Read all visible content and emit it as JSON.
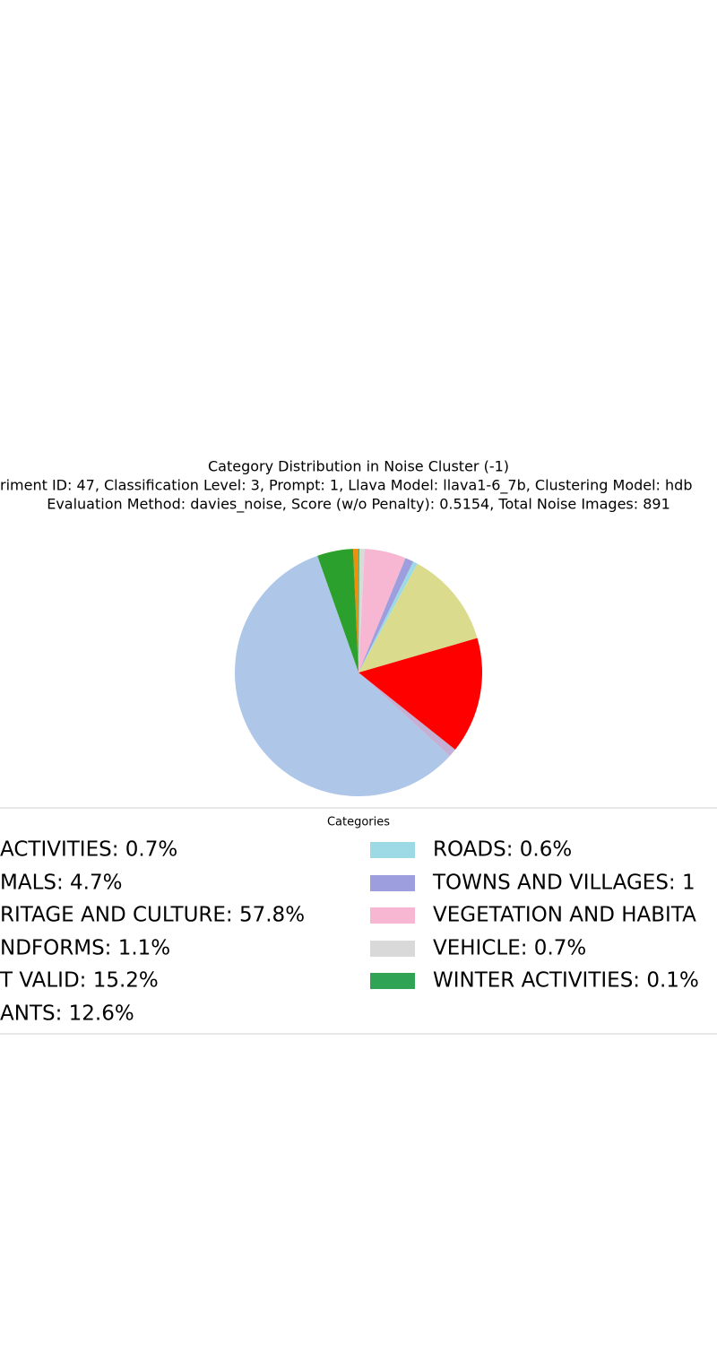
{
  "chart_data": {
    "type": "pie",
    "title": [
      "Category Distribution in Noise Cluster (-1)",
      "riment ID: 47, Classification Level: 3, Prompt: 1, Llava Model: llava1-6_7b, Clustering Model: hdb",
      "Evaluation Method: davies_noise, Score (w/o Penalty): 0.5154, Total Noise Images: 891"
    ],
    "legend_title": "Categories",
    "categories": [
      " ACTIVITIES: 0.7%",
      "MALS: 4.7%",
      "RITAGE AND CULTURE: 57.8%",
      "NDFORMS: 1.1%",
      "T VALID: 15.2%",
      "ANTS: 12.6%",
      "ROADS: 0.6%",
      "TOWNS AND VILLAGES: 1",
      "VEGETATION AND HABITA",
      "VEHICLE: 0.7%",
      "WINTER ACTIVITIES: 0.1%"
    ],
    "values": [
      0.7,
      4.7,
      57.8,
      1.1,
      15.2,
      12.6,
      0.6,
      1.1,
      5.4,
      0.7,
      0.1
    ],
    "colors": [
      "#f28e0e",
      "#2ca02c",
      "#aec7e8",
      "#c5b0d5",
      "#ff0000",
      "#dbdb8d",
      "#9edae5",
      "#9c9ede",
      "#f7b6d2",
      "#d9d9d9",
      "#31a354"
    ],
    "start_angle": 90
  }
}
